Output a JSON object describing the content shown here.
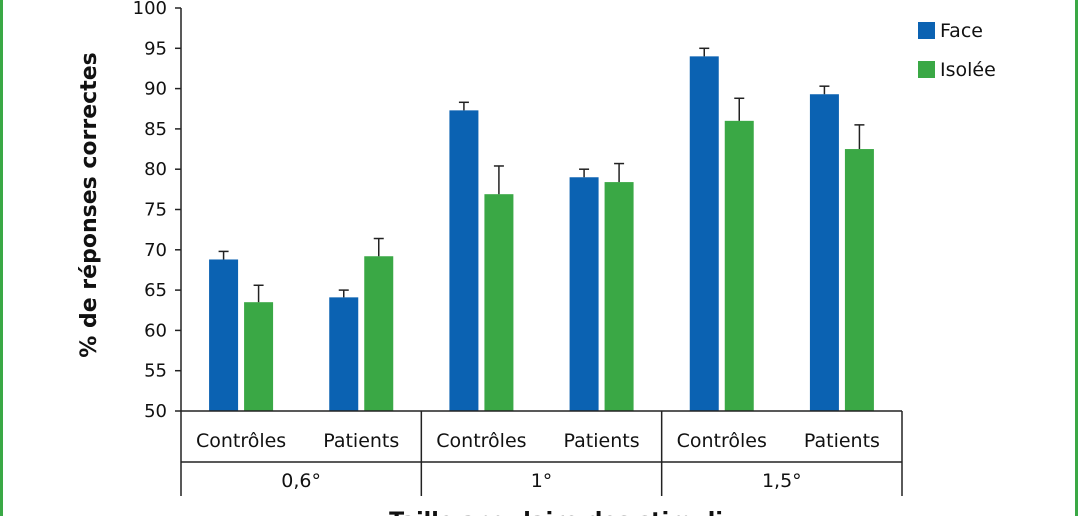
{
  "chart_data": {
    "type": "bar",
    "ylabel": "% de réponses correctes",
    "xlabel": "Taille angulaire des stimuli",
    "ylim": [
      50,
      100
    ],
    "yticks": [
      50,
      55,
      60,
      65,
      70,
      75,
      80,
      85,
      90,
      95,
      100
    ],
    "grid": false,
    "legend_position": "right",
    "groups": [
      {
        "label": "0,6°",
        "categories": [
          "Contrôles",
          "Patients"
        ]
      },
      {
        "label": "1°",
        "categories": [
          "Contrôles",
          "Patients"
        ]
      },
      {
        "label": "1,5°",
        "categories": [
          "Contrôles",
          "Patients"
        ]
      }
    ],
    "series": [
      {
        "name": "Face",
        "color": "#0b62b2",
        "values": [
          68.8,
          64.1,
          87.3,
          79.0,
          94.0,
          89.3
        ],
        "error": [
          1.0,
          0.9,
          1.0,
          1.0,
          1.0,
          1.0
        ]
      },
      {
        "name": "Isolée",
        "color": "#3aa845",
        "values": [
          63.5,
          69.2,
          76.9,
          78.4,
          86.0,
          82.5
        ],
        "error": [
          2.1,
          2.2,
          3.5,
          2.3,
          2.8,
          3.0
        ]
      }
    ]
  }
}
